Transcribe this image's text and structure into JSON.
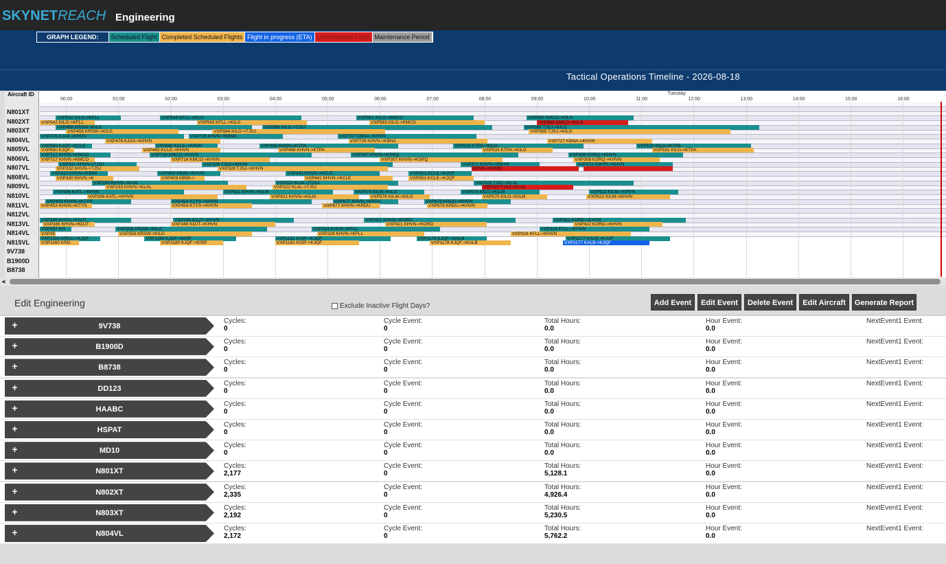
{
  "header": {
    "logo_bold": "SKYNET",
    "logo_italic": "REACH",
    "app_title": "Engineering"
  },
  "legend": {
    "label": "GRAPH LEGEND:",
    "items": [
      {
        "text": "Scheduled Flight",
        "color": "#1a8f8f",
        "text_color": "#111111"
      },
      {
        "text": "Completed Scheduled Flights",
        "color": "#f0b44c",
        "text_color": "#111111"
      },
      {
        "text": "Flight in progress (ETA)",
        "color": "#1463e6",
        "text_color": "#ffffff"
      },
      {
        "text": "Unscheduled Flight",
        "color": "#d81c1c",
        "text_color": "#7a1c1c"
      },
      {
        "text": "Maintenance Period",
        "color": "#9c9c9c",
        "text_color": "#111111"
      }
    ]
  },
  "timeline": {
    "title": "Tactical Operations Timeline - 2026-08-18",
    "aircraft_header": "Aircraft ID",
    "day_label": "Tuesday",
    "hours": [
      "00:00",
      "01:00",
      "02:00",
      "03:00",
      "04:00",
      "05:00",
      "06:00",
      "07:00",
      "08:00",
      "09:00",
      "10:00",
      "11:00",
      "12:00",
      "13:00",
      "14:00",
      "15:00",
      "16:00"
    ],
    "aircraft": [
      "N801XT",
      "N802XT",
      "N803XT",
      "N804VL",
      "N805VL",
      "N806VL",
      "N807VL",
      "N808VL",
      "N809VL",
      "N810VL",
      "N811VL",
      "N812VL",
      "N813VL",
      "N814VL",
      "N815VL",
      "9V738",
      "B1900D",
      "B8738"
    ],
    "bars": [
      {
        "r": 1,
        "s": 0.3,
        "e": 1.55,
        "t": "sched",
        "l": "VXP542 KILG->KFLL"
      },
      {
        "r": 1,
        "s": 2.3,
        "e": 5.0,
        "t": "sched",
        "l": "VXP544 KFLL->KILG"
      },
      {
        "r": 1,
        "s": 6.05,
        "e": 8.3,
        "t": "sched",
        "l": "VXP561 KILG->KMCO"
      },
      {
        "r": 1,
        "s": 9.3,
        "e": 11.35,
        "t": "sched",
        "l": "VXP560 KMCO->KILG"
      },
      {
        "r": 2,
        "s": 0.0,
        "e": 1.05,
        "t": "done",
        "l": "VXP542 KILG->KFLL"
      },
      {
        "r": 2,
        "s": 3.0,
        "e": 5.1,
        "t": "done",
        "l": "VXP543 KFLL->KILG"
      },
      {
        "r": 2,
        "s": 6.3,
        "e": 8.5,
        "t": "done",
        "l": "VXP563 KILG->KMCO"
      },
      {
        "r": 2,
        "s": 9.5,
        "e": 11.25,
        "t": "unsched",
        "l": "VXP560 KMCO->KILG"
      },
      {
        "r": 3,
        "s": 0.3,
        "e": 4.05,
        "t": "sched",
        "l": "VXP458 KRSW->KILG"
      },
      {
        "r": 3,
        "s": 4.25,
        "e": 8.65,
        "t": "sched",
        "l": "VXP586 KILG->TJSJ"
      },
      {
        "r": 3,
        "s": 9.25,
        "e": 13.75,
        "t": "sched",
        "l": "VXP585 TJSJ->KILG"
      },
      {
        "r": 4,
        "s": 0.5,
        "e": 2.65,
        "t": "done",
        "l": "VXP458 KRSW->KILG"
      },
      {
        "r": 4,
        "s": 3.3,
        "e": 6.6,
        "t": "done",
        "l": "VXP584 KILG->TJSJ"
      },
      {
        "r": 4,
        "s": 9.35,
        "e": 13.2,
        "t": "done",
        "l": "VXP585 TJSJ->KILG"
      },
      {
        "r": 5,
        "s": 0.0,
        "e": 2.75,
        "t": "sched",
        "l": "VXP476 KJAX->KHVN"
      },
      {
        "r": 5,
        "s": 2.85,
        "e": 4.65,
        "t": "sched",
        "l": "VXP726 KHVN->KBNA"
      },
      {
        "r": 5,
        "s": 5.7,
        "e": 8.35,
        "t": "sched",
        "l": "VXP727 KBNA->KHVN"
      },
      {
        "r": 6,
        "s": 1.25,
        "e": 3.45,
        "t": "done",
        "l": "VXP476 KJAX->KHVN"
      },
      {
        "r": 6,
        "s": 5.9,
        "e": 8.55,
        "t": "done",
        "l": "VXP726 KHVN->KBNA"
      },
      {
        "r": 6,
        "s": 9.7,
        "e": 11.7,
        "t": "done",
        "l": "VXP727 KBNA->KHVN"
      },
      {
        "r": 7,
        "s": 0.0,
        "e": 1.0,
        "t": "sched",
        "l": "VXP650 KJQF->KCLE"
      },
      {
        "r": 7,
        "s": 2.2,
        "e": 3.4,
        "t": "sched",
        "l": "VXP440 KCLE->KHVN"
      },
      {
        "r": 7,
        "s": 4.2,
        "e": 6.85,
        "t": "sched",
        "l": "VXP468 KHVN->KTPA"
      },
      {
        "r": 7,
        "s": 7.9,
        "e": 10.4,
        "t": "sched",
        "l": "VXP533 KTPA->KILG"
      },
      {
        "r": 7,
        "s": 11.4,
        "e": 13.6,
        "t": "sched",
        "l": "VXP532 KILG->KTPA"
      },
      {
        "r": 8,
        "s": 0.0,
        "e": 0.65,
        "t": "done",
        "l": "VXP650 KJQF"
      },
      {
        "r": 8,
        "s": 1.95,
        "e": 3.45,
        "t": "done",
        "l": "VXP440 KCLE->KHVN"
      },
      {
        "r": 8,
        "s": 4.55,
        "e": 6.4,
        "t": "done",
        "l": "VXP468 KHVN->KTPA"
      },
      {
        "r": 8,
        "s": 8.45,
        "e": 9.8,
        "t": "done",
        "l": "VXP533 KTPA->KILG"
      },
      {
        "r": 8,
        "s": 11.7,
        "e": 13.65,
        "t": "done",
        "l": "VXP532 KILG->KTPA"
      },
      {
        "r": 9,
        "s": 0.0,
        "e": 1.35,
        "t": "sched",
        "l": "VXP717 KHVN->KMCO"
      },
      {
        "r": 9,
        "s": 2.1,
        "e": 5.2,
        "t": "sched",
        "l": "VXP716 KMCO->KHVN"
      },
      {
        "r": 9,
        "s": 5.95,
        "e": 9.15,
        "t": "sched",
        "l": "VXP307 KHVN->KSRQ"
      },
      {
        "r": 9,
        "s": 10.1,
        "e": 12.3,
        "t": "sched",
        "l": "VXP308 KSRQ->KHVN"
      },
      {
        "r": 10,
        "s": 0.0,
        "e": 1.05,
        "t": "done",
        "l": "VXP717 KHVN->KMCO"
      },
      {
        "r": 10,
        "s": 2.5,
        "e": 4.4,
        "t": "done",
        "l": "VXP716 KMCO->KHVN"
      },
      {
        "r": 10,
        "s": 6.5,
        "e": 8.85,
        "t": "done",
        "l": "VXP307 KHVN->KSRQ"
      },
      {
        "r": 10,
        "s": 10.2,
        "e": 11.85,
        "t": "done",
        "l": "VXP308 KSRQ->KHVN"
      },
      {
        "r": 11,
        "s": 0.35,
        "e": 1.85,
        "t": "sched",
        "l": "VXP331 KHVN->TJSJ"
      },
      {
        "r": 11,
        "s": 3.1,
        "e": 6.75,
        "t": "sched",
        "l": "VXP328 TJSJ->KHVN"
      },
      {
        "r": 11,
        "s": 8.05,
        "e": 9.55,
        "t": "sched",
        "l": "VXP371 KHVN->KMYR"
      },
      {
        "r": 11,
        "s": 10.25,
        "e": 12.1,
        "t": "sched",
        "l": "VXP372 KMYR->KHVN"
      },
      {
        "r": 12,
        "s": 0.3,
        "e": 1.9,
        "t": "done",
        "l": "VXP332 KHVN->TJSJ"
      },
      {
        "r": 12,
        "s": 3.4,
        "e": 6.65,
        "t": "done",
        "l": "VXP328 TJSJ->KHVN"
      },
      {
        "r": 12,
        "s": 8.25,
        "e": 10.3,
        "t": "unsched",
        "l": "KHVN->KHVN"
      },
      {
        "r": 12,
        "s": 10.4,
        "e": 12.1,
        "t": "unsched",
        "l": ""
      },
      {
        "r": 13,
        "s": 0.2,
        "e": 1.3,
        "t": "sched",
        "l": "VXP410 KHVN->KBWI"
      },
      {
        "r": 13,
        "s": 2.25,
        "e": 3.45,
        "t": "sched",
        "l": "VXP409 KBWI->KHVN"
      },
      {
        "r": 13,
        "s": 4.7,
        "e": 6.5,
        "t": "sched",
        "l": "VXP441 KHVN->KCLE"
      },
      {
        "r": 13,
        "s": 7.05,
        "e": 8.25,
        "t": "sched",
        "l": "VXP651 KCLE->KJQF"
      },
      {
        "r": 14,
        "s": 0.3,
        "e": 1.4,
        "t": "done",
        "l": "VXP430 KHVN->K"
      },
      {
        "r": 14,
        "s": 2.3,
        "e": 3.15,
        "t": "done",
        "l": "VXP409 KBWI->"
      },
      {
        "r": 14,
        "s": 5.05,
        "e": 6.75,
        "t": "done",
        "l": "VXP441 KHVN->KCLE"
      },
      {
        "r": 14,
        "s": 7.05,
        "e": 8.3,
        "t": "done",
        "l": "VXP651 KCLE->KJQF"
      },
      {
        "r": 15,
        "s": 1.0,
        "e": 3.6,
        "t": "sched",
        "l": "VXP233 KHVN->KLAL"
      },
      {
        "r": 15,
        "s": 4.5,
        "e": 6.85,
        "t": "sched",
        "l": "VXP222 KLAL->TJSJ"
      },
      {
        "r": 15,
        "s": 8.3,
        "e": 11.35,
        "t": "sched",
        "l": "VXP229 TJSJ->KLAL"
      },
      {
        "r": 16,
        "s": 1.25,
        "e": 3.95,
        "t": "done",
        "l": "VXP233 KHVN->KLAL"
      },
      {
        "r": 16,
        "s": 4.45,
        "e": 6.65,
        "t": "done",
        "l": "VXP222 KLAL->TJSJ"
      },
      {
        "r": 16,
        "s": 8.45,
        "e": 10.2,
        "t": "unsched",
        "l": "VXP223 TJSJ->KLAL"
      },
      {
        "r": 17,
        "s": 0.25,
        "e": 2.75,
        "t": "sched",
        "l": "VXP396 KATL->KHVN"
      },
      {
        "r": 17,
        "s": 3.5,
        "e": 5.6,
        "t": "sched",
        "l": "VXP621 KHVN->KILM"
      },
      {
        "r": 17,
        "s": 6.0,
        "e": 7.35,
        "t": "sched",
        "l": "VXP576 KILM->KILG"
      },
      {
        "r": 17,
        "s": 8.05,
        "e": 9.55,
        "t": "sched",
        "l": "VXP575 KILG->KILM"
      },
      {
        "r": 17,
        "s": 10.5,
        "e": 12.2,
        "t": "sched",
        "l": "VXP622 KILM->KHVN"
      },
      {
        "r": 18,
        "s": 0.9,
        "e": 3.4,
        "t": "done",
        "l": "VXP396 KATL->KHVN"
      },
      {
        "r": 18,
        "s": 4.4,
        "e": 6.1,
        "t": "done",
        "l": "VXP621 KHVN->KILM"
      },
      {
        "r": 18,
        "s": 6.3,
        "e": 7.45,
        "t": "done",
        "l": "VXP576 KILM->KILG"
      },
      {
        "r": 18,
        "s": 8.45,
        "e": 9.7,
        "t": "done",
        "l": "VXP575 KILG->KILM"
      },
      {
        "r": 18,
        "s": 10.45,
        "e": 12.05,
        "t": "done",
        "l": "VXP622 KILM->KHVN"
      },
      {
        "r": 19,
        "s": 0.1,
        "e": 1.75,
        "t": "sched",
        "l": "VXP453 KHVN->KTYS"
      },
      {
        "r": 19,
        "s": 2.5,
        "e": 5.2,
        "t": "sched",
        "l": "VXP454 KTYS->KHVN"
      },
      {
        "r": 19,
        "s": 5.6,
        "e": 6.85,
        "t": "sched",
        "l": "VXP677 KHVN->KRDU"
      },
      {
        "r": 19,
        "s": 7.35,
        "e": 9.0,
        "t": "sched",
        "l": "VXP678 KRDU->KHVN"
      },
      {
        "r": 20,
        "s": 0.0,
        "e": 1.0,
        "t": "done",
        "l": "VXP453 KHVN->KTYS"
      },
      {
        "r": 20,
        "s": 2.5,
        "e": 4.05,
        "t": "done",
        "l": "VXP454 KTYS->KHVN"
      },
      {
        "r": 20,
        "s": 5.4,
        "e": 6.5,
        "t": "done",
        "l": "VXP677 KHVN->KRDU"
      },
      {
        "r": 20,
        "s": 7.4,
        "e": 8.55,
        "t": "done",
        "l": "VXP678 KRDU->KHVN"
      },
      {
        "r": 23,
        "s": 0.0,
        "e": 1.75,
        "t": "sched",
        "l": "VXP346 KHVN->KDJT"
      },
      {
        "r": 23,
        "s": 2.55,
        "e": 4.85,
        "t": "sched",
        "l": "VXP346 KDJT->KHVN"
      },
      {
        "r": 23,
        "s": 6.2,
        "e": 9.1,
        "t": "sched",
        "l": "VXP421 KHVN->KORD"
      },
      {
        "r": 23,
        "s": 9.8,
        "e": 12.35,
        "t": "sched",
        "l": "VXP422 KORD->KHVN"
      },
      {
        "r": 24,
        "s": 0.05,
        "e": 1.05,
        "t": "done",
        "l": "VXP345 KHVN->KDJT"
      },
      {
        "r": 24,
        "s": 2.5,
        "e": 4.5,
        "t": "done",
        "l": "VXP346 KDJT->KHVN"
      },
      {
        "r": 24,
        "s": 6.6,
        "e": 8.55,
        "t": "done",
        "l": "VXP421 KHVN->KORD"
      },
      {
        "r": 24,
        "s": 10.2,
        "e": 11.9,
        "t": "done",
        "l": "VXP422 KORD->KHVN"
      },
      {
        "r": 25,
        "s": 0.0,
        "e": 0.6,
        "t": "sched",
        "l": "VXP357 KH"
      },
      {
        "r": 25,
        "s": 1.45,
        "e": 4.35,
        "t": "sched",
        "l": "VXP358 KRSW->KILG"
      },
      {
        "r": 25,
        "s": 5.2,
        "e": 7.65,
        "t": "sched",
        "l": "VXP324 KHVN->KFLL"
      },
      {
        "r": 25,
        "s": 9.55,
        "e": 11.65,
        "t": "sched",
        "l": "VXP324 KFLL->KHVN"
      },
      {
        "r": 26,
        "s": 0.0,
        "e": 0.3,
        "t": "done",
        "l": "VXP357"
      },
      {
        "r": 26,
        "s": 1.5,
        "e": 4.05,
        "t": "done",
        "l": "VXP358 KRSW->KILG"
      },
      {
        "r": 26,
        "s": 5.3,
        "e": 7.35,
        "t": "done",
        "l": "VXP328 KHVN->KFLL"
      },
      {
        "r": 26,
        "s": 9.0,
        "e": 11.3,
        "t": "done",
        "l": "VXP324 KFLL->KHVN"
      },
      {
        "r": 27,
        "s": 0.0,
        "e": 1.15,
        "t": "sched",
        "l": "VXP1160 KRDU->KJQF"
      },
      {
        "r": 27,
        "s": 2.0,
        "e": 3.75,
        "t": "sched",
        "l": "VXP1180 KJQF->KISP"
      },
      {
        "r": 27,
        "s": 4.5,
        "e": 6.7,
        "t": "sched",
        "l": "VXP1181 KISP->KJQF"
      },
      {
        "r": 27,
        "s": 7.2,
        "e": 8.55,
        "t": "sched",
        "l": "VXP1178 KJQF->KALB"
      },
      {
        "r": 27,
        "s": 10.05,
        "e": 12.05,
        "t": "sched",
        "l": "VXP1177 KALB->KJQF"
      },
      {
        "r": 28,
        "s": 0.0,
        "e": 0.75,
        "t": "done",
        "l": "VXP1160 KRD"
      },
      {
        "r": 28,
        "s": 2.3,
        "e": 3.5,
        "t": "done",
        "l": "VXP1180 KJQF->KISP"
      },
      {
        "r": 28,
        "s": 4.5,
        "e": 6.1,
        "t": "done",
        "l": "VXP1181 KISP->KJQF"
      },
      {
        "r": 28,
        "s": 7.45,
        "e": 9.0,
        "t": "done",
        "l": "VXP1178 KJQF->KALB"
      },
      {
        "r": 28,
        "s": 10.0,
        "e": 11.65,
        "t": "prog",
        "l": "VXP1177 KALB->KJQF"
      }
    ]
  },
  "edit": {
    "title": "Edit Engineering",
    "exclude_label": "Exclude Inactive Flight Days?",
    "buttons": {
      "add_event": "Add Event",
      "edit_event": "Edit Event",
      "delete_event": "Delete Event",
      "edit_aircraft": "Edit Aircraft",
      "generate_report": "Generate Report"
    },
    "field_labels": {
      "cycles": "Cycles:",
      "cycle_event": "Cycle Event:",
      "total_hours": "Total Hours:",
      "hour_event": "Hour Event:",
      "next_event": "NextEvent1 Event:"
    },
    "rows": [
      {
        "name": "9V738",
        "cycles": "0",
        "cycle_event": "0",
        "total_hours": "0.0",
        "hour_event": "0.0"
      },
      {
        "name": "B1900D",
        "cycles": "0",
        "cycle_event": "0",
        "total_hours": "0.0",
        "hour_event": "0.0"
      },
      {
        "name": "B8738",
        "cycles": "0",
        "cycle_event": "0",
        "total_hours": "0.0",
        "hour_event": "0.0"
      },
      {
        "name": "DD123",
        "cycles": "0",
        "cycle_event": "0",
        "total_hours": "0.0",
        "hour_event": "0.0"
      },
      {
        "name": "HAABC",
        "cycles": "0",
        "cycle_event": "0",
        "total_hours": "0.0",
        "hour_event": "0.0"
      },
      {
        "name": "HSPAT",
        "cycles": "0",
        "cycle_event": "0",
        "total_hours": "0.0",
        "hour_event": "0.0"
      },
      {
        "name": "MD10",
        "cycles": "0",
        "cycle_event": "0",
        "total_hours": "0.0",
        "hour_event": "0.0"
      },
      {
        "name": "N801XT",
        "cycles": "2,177",
        "cycle_event": "0",
        "total_hours": "5,128.1",
        "hour_event": "0.0"
      },
      {
        "name": "N802XT",
        "cycles": "2,335",
        "cycle_event": "0",
        "total_hours": "4,926.4",
        "hour_event": "0.0"
      },
      {
        "name": "N803XT",
        "cycles": "2,192",
        "cycle_event": "0",
        "total_hours": "5,230.5",
        "hour_event": "0.0"
      },
      {
        "name": "N804VL",
        "cycles": "2,172",
        "cycle_event": "0",
        "total_hours": "5,762.2",
        "hour_event": "0.0"
      }
    ]
  }
}
